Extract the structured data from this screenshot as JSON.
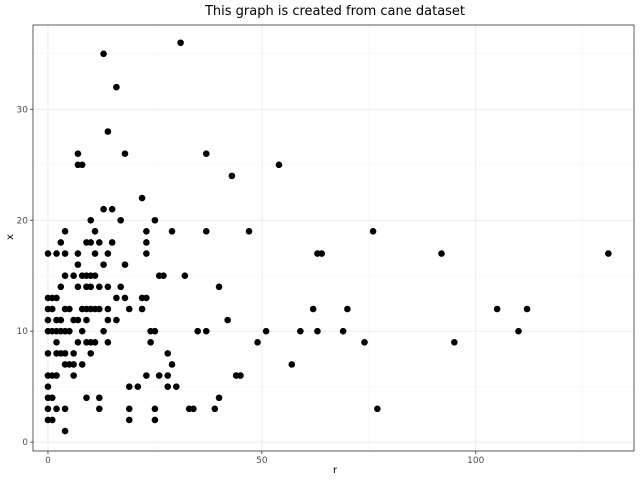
{
  "chart_data": {
    "type": "scatter",
    "title": "This graph is created from cane dataset",
    "xlabel": "r",
    "ylabel": "x",
    "xlim": [
      -3.5,
      137
    ],
    "ylim": [
      -0.8,
      37.6
    ],
    "xticks": [
      0,
      50,
      100
    ],
    "yticks": [
      0,
      10,
      20,
      30
    ],
    "grid": true,
    "series": [
      {
        "points": [
          [
            0,
            2
          ],
          [
            0,
            3
          ],
          [
            0,
            4
          ],
          [
            0,
            5
          ],
          [
            0,
            6
          ],
          [
            0,
            8
          ],
          [
            0,
            10
          ],
          [
            0,
            11
          ],
          [
            0,
            12
          ],
          [
            0,
            13
          ],
          [
            0,
            17
          ],
          [
            1,
            2
          ],
          [
            1,
            4
          ],
          [
            1,
            6
          ],
          [
            1,
            10
          ],
          [
            1,
            12
          ],
          [
            1,
            13
          ],
          [
            2,
            3
          ],
          [
            2,
            6
          ],
          [
            2,
            8
          ],
          [
            2,
            9
          ],
          [
            2,
            10
          ],
          [
            2,
            11
          ],
          [
            2,
            13
          ],
          [
            2,
            17
          ],
          [
            3,
            8
          ],
          [
            3,
            10
          ],
          [
            3,
            11
          ],
          [
            3,
            14
          ],
          [
            3,
            18
          ],
          [
            4,
            1
          ],
          [
            4,
            3
          ],
          [
            4,
            7
          ],
          [
            4,
            8
          ],
          [
            4,
            10
          ],
          [
            4,
            12
          ],
          [
            4,
            15
          ],
          [
            4,
            17
          ],
          [
            4,
            19
          ],
          [
            5,
            7
          ],
          [
            5,
            10
          ],
          [
            5,
            12
          ],
          [
            6,
            6
          ],
          [
            6,
            7
          ],
          [
            6,
            8
          ],
          [
            6,
            11
          ],
          [
            6,
            15
          ],
          [
            7,
            9
          ],
          [
            7,
            11
          ],
          [
            7,
            14
          ],
          [
            7,
            16
          ],
          [
            7,
            17
          ],
          [
            7,
            25
          ],
          [
            7,
            26
          ],
          [
            8,
            7
          ],
          [
            8,
            10
          ],
          [
            8,
            12
          ],
          [
            8,
            15
          ],
          [
            8,
            25
          ],
          [
            9,
            4
          ],
          [
            9,
            9
          ],
          [
            9,
            11
          ],
          [
            9,
            12
          ],
          [
            9,
            14
          ],
          [
            9,
            15
          ],
          [
            9,
            18
          ],
          [
            10,
            8
          ],
          [
            10,
            9
          ],
          [
            10,
            12
          ],
          [
            10,
            14
          ],
          [
            10,
            15
          ],
          [
            10,
            18
          ],
          [
            10,
            20
          ],
          [
            11,
            9
          ],
          [
            11,
            12
          ],
          [
            11,
            15
          ],
          [
            11,
            17
          ],
          [
            11,
            19
          ],
          [
            12,
            3
          ],
          [
            12,
            4
          ],
          [
            12,
            12
          ],
          [
            12,
            14
          ],
          [
            12,
            18
          ],
          [
            13,
            10
          ],
          [
            13,
            16
          ],
          [
            13,
            21
          ],
          [
            13,
            35
          ],
          [
            14,
            9
          ],
          [
            14,
            11
          ],
          [
            14,
            12
          ],
          [
            14,
            14
          ],
          [
            14,
            17
          ],
          [
            14,
            28
          ],
          [
            15,
            18
          ],
          [
            15,
            21
          ],
          [
            16,
            11
          ],
          [
            16,
            13
          ],
          [
            16,
            32
          ],
          [
            17,
            14
          ],
          [
            17,
            20
          ],
          [
            18,
            13
          ],
          [
            18,
            16
          ],
          [
            18,
            26
          ],
          [
            19,
            2
          ],
          [
            19,
            3
          ],
          [
            19,
            5
          ],
          [
            19,
            12
          ],
          [
            21,
            5
          ],
          [
            22,
            12
          ],
          [
            22,
            13
          ],
          [
            22,
            22
          ],
          [
            23,
            6
          ],
          [
            23,
            13
          ],
          [
            23,
            17
          ],
          [
            23,
            18
          ],
          [
            23,
            19
          ],
          [
            24,
            9
          ],
          [
            24,
            10
          ],
          [
            25,
            2
          ],
          [
            25,
            3
          ],
          [
            25,
            10
          ],
          [
            25,
            20
          ],
          [
            26,
            6
          ],
          [
            26,
            15
          ],
          [
            27,
            15
          ],
          [
            28,
            5
          ],
          [
            28,
            6
          ],
          [
            28,
            8
          ],
          [
            29,
            7
          ],
          [
            29,
            19
          ],
          [
            30,
            5
          ],
          [
            31,
            36
          ],
          [
            32,
            15
          ],
          [
            33,
            3
          ],
          [
            34,
            3
          ],
          [
            35,
            10
          ],
          [
            37,
            10
          ],
          [
            37,
            19
          ],
          [
            37,
            26
          ],
          [
            39,
            3
          ],
          [
            40,
            4
          ],
          [
            40,
            14
          ],
          [
            42,
            11
          ],
          [
            43,
            24
          ],
          [
            44,
            6
          ],
          [
            45,
            6
          ],
          [
            47,
            19
          ],
          [
            49,
            9
          ],
          [
            51,
            10
          ],
          [
            54,
            25
          ],
          [
            57,
            7
          ],
          [
            59,
            10
          ],
          [
            62,
            12
          ],
          [
            63,
            10
          ],
          [
            63,
            17
          ],
          [
            64,
            17
          ],
          [
            69,
            10
          ],
          [
            70,
            12
          ],
          [
            74,
            9
          ],
          [
            76,
            19
          ],
          [
            77,
            3
          ],
          [
            92,
            17
          ],
          [
            95,
            9
          ],
          [
            105,
            12
          ],
          [
            110,
            10
          ],
          [
            112,
            12
          ],
          [
            131,
            17
          ]
        ]
      }
    ]
  }
}
